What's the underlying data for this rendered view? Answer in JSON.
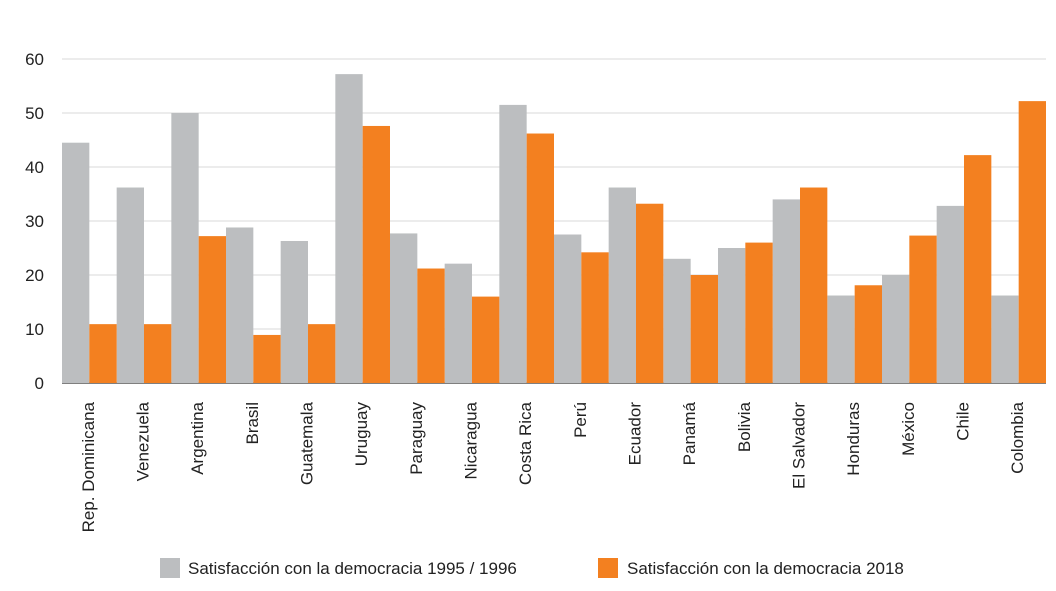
{
  "chart_data": {
    "type": "bar",
    "title": "",
    "xlabel": "",
    "ylabel": "",
    "ylim": [
      0,
      60
    ],
    "yticks": [
      0,
      10,
      20,
      30,
      40,
      50,
      60
    ],
    "grid": true,
    "legend_position": "bottom",
    "categories": [
      "Rep. Dominicana",
      "Venezuela",
      "Argentina",
      "Brasil",
      "Guatemala",
      "Uruguay",
      "Paraguay",
      "Nicaragua",
      "Costa Rica",
      "Perú",
      "Ecuador",
      "Panamá",
      "Bolivia",
      "El Salvador",
      "Honduras",
      "México",
      "Chile",
      "Colombia"
    ],
    "series": [
      {
        "name": "Satisfacción con la democracia 1995 / 1996",
        "color": "#bcbec0",
        "values": [
          44.5,
          36.2,
          50.0,
          28.8,
          26.3,
          57.2,
          27.7,
          22.1,
          51.5,
          27.5,
          36.2,
          23.0,
          25.0,
          34.0,
          16.2,
          20.0,
          32.8,
          16.2
        ]
      },
      {
        "name": "Satisfacción con la democracia 2018",
        "color": "#f38020",
        "values": [
          10.9,
          10.9,
          27.2,
          8.9,
          10.9,
          47.6,
          21.2,
          16.0,
          46.2,
          24.2,
          33.2,
          20.0,
          26.0,
          36.2,
          18.1,
          27.3,
          42.2,
          52.2
        ]
      }
    ]
  }
}
